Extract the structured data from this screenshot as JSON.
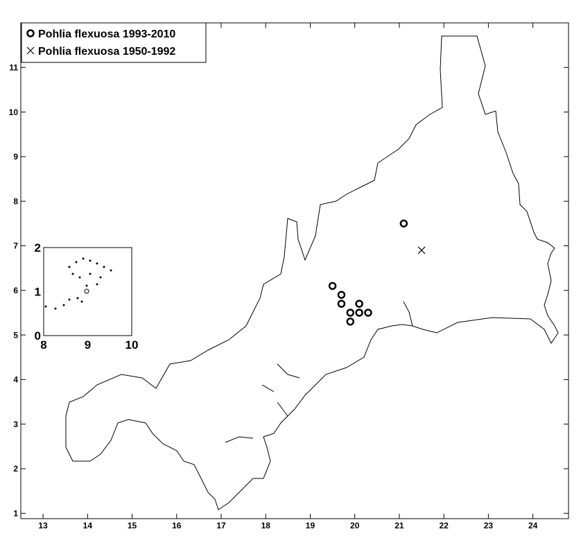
{
  "chart_data": [
    {
      "type": "scatter",
      "xlim": [
        12.5,
        24.8
      ],
      "ylim": [
        0.88,
        12.0
      ],
      "xticks": [
        13,
        14,
        15,
        16,
        17,
        18,
        19,
        20,
        21,
        22,
        23,
        24
      ],
      "yticks": [
        1,
        2,
        3,
        4,
        5,
        6,
        7,
        8,
        9,
        10,
        11
      ],
      "legend": "upper left",
      "series": [
        {
          "name": "Pohlia flexuosa 1993-2010",
          "marker": "circle",
          "color": "#000000",
          "x": [
            19.5,
            19.7,
            19.7,
            19.9,
            19.9,
            20.1,
            20.1,
            20.3,
            21.1
          ],
          "values": [
            6.1,
            5.9,
            5.7,
            5.5,
            5.3,
            5.7,
            5.5,
            5.5,
            7.5
          ]
        },
        {
          "name": "Pohlia flexuosa 1950-1992",
          "marker": "cross",
          "color": "#000000",
          "x": [
            21.5
          ],
          "values": [
            6.9
          ]
        }
      ]
    },
    {
      "type": "inset",
      "xlim": [
        8,
        10
      ],
      "ylim": [
        0,
        2
      ],
      "xticks": [
        8,
        9,
        10
      ],
      "yticks": [
        0,
        1,
        2
      ]
    }
  ]
}
